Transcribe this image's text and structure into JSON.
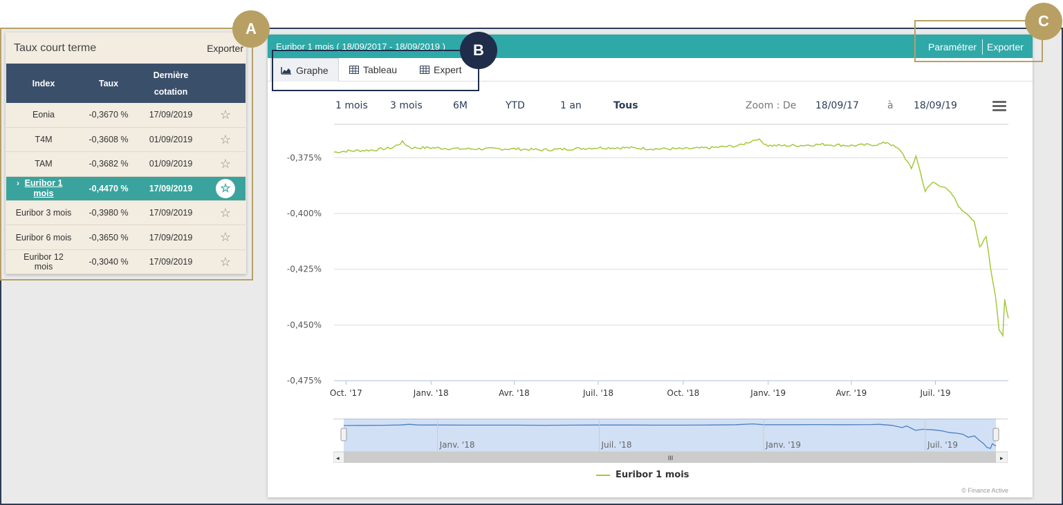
{
  "left_panel": {
    "title": "Taux court terme",
    "export_label": "Exporter",
    "columns": [
      "Index",
      "Taux",
      "Dernière cotation"
    ],
    "rows": [
      {
        "index": "Eonia",
        "taux": "-0,3670 %",
        "date": "17/09/2019",
        "active": false
      },
      {
        "index": "T4M",
        "taux": "-0,3608 %",
        "date": "01/09/2019",
        "active": false
      },
      {
        "index": "TAM",
        "taux": "-0,3682 %",
        "date": "01/09/2019",
        "active": false
      },
      {
        "index": "Euribor 1 mois",
        "taux": "-0,4470 %",
        "date": "17/09/2019",
        "active": true
      },
      {
        "index": "Euribor 3 mois",
        "taux": "-0,3980 %",
        "date": "17/09/2019",
        "active": false
      },
      {
        "index": "Euribor 6 mois",
        "taux": "-0,3650 %",
        "date": "17/09/2019",
        "active": false
      },
      {
        "index": "Euribor 12 mois",
        "taux": "-0,3040 %",
        "date": "17/09/2019",
        "active": false
      }
    ],
    "star_icon": "star-icon"
  },
  "right_panel": {
    "title": "Euribor 1 mois ( 18/09/2017 - 18/09/2019 )",
    "param_label": "Paramétrer",
    "export_label": "Exporter",
    "tabs": [
      {
        "label": "Graphe",
        "icon": "area-chart-icon",
        "active": true
      },
      {
        "label": "Tableau",
        "icon": "table-icon",
        "active": false
      },
      {
        "label": "Expert",
        "icon": "table-icon",
        "active": false
      }
    ],
    "ranges": [
      "1 mois",
      "3 mois",
      "6M",
      "YTD",
      "1 an",
      "Tous"
    ],
    "selected_range": "Tous",
    "zoom_label": "Zoom : De",
    "zoom_from": "18/09/17",
    "zoom_to_label": "à",
    "zoom_to": "18/09/19",
    "menu_icon": "hamburger-menu-icon",
    "navigator_labels": [
      "Janv. '18",
      "Juil. '18",
      "Janv. '19",
      "Juil. '19"
    ],
    "scrollbar_grip": "III",
    "legend_label": "Euribor 1 mois",
    "credits": "© Finance Active"
  },
  "callouts": {
    "a": "A",
    "b": "B",
    "c": "C"
  },
  "colors": {
    "teal": "#2fa8a8",
    "navy": "#3a4f6a",
    "gold": "#b8a064",
    "series": "#a3c83a"
  },
  "chart_data": {
    "type": "line",
    "title": "",
    "xlabel": "",
    "ylabel": "",
    "ylim": [
      -0.475,
      -0.36
    ],
    "yticks": [
      -0.375,
      -0.4,
      -0.425,
      -0.45,
      -0.475
    ],
    "ytick_labels": [
      "-0,375%",
      "-0,400%",
      "-0,425%",
      "-0,450%",
      "-0,475%"
    ],
    "xtick_labels": [
      "Oct. '17",
      "Janv. '18",
      "Avr. '18",
      "Juil. '18",
      "Oct. '18",
      "Janv. '19",
      "Avr. '19",
      "Juil. '19"
    ],
    "xticks": [
      "2017-10-01",
      "2018-01-01",
      "2018-04-01",
      "2018-07-01",
      "2018-10-01",
      "2019-01-01",
      "2019-04-01",
      "2019-07-01"
    ],
    "x_range": [
      "2017-09-18",
      "2019-09-18"
    ],
    "series": [
      {
        "name": "Euribor 1 mois",
        "color": "#a3c83a",
        "points": [
          [
            "2017-09-18",
            -0.3725
          ],
          [
            "2017-10-01",
            -0.372
          ],
          [
            "2017-11-01",
            -0.3715
          ],
          [
            "2017-11-20",
            -0.3705
          ],
          [
            "2017-12-01",
            -0.368
          ],
          [
            "2017-12-10",
            -0.3705
          ],
          [
            "2018-01-01",
            -0.3705
          ],
          [
            "2018-02-01",
            -0.371
          ],
          [
            "2018-03-01",
            -0.371
          ],
          [
            "2018-04-01",
            -0.371
          ],
          [
            "2018-05-01",
            -0.3715
          ],
          [
            "2018-06-01",
            -0.371
          ],
          [
            "2018-07-01",
            -0.3705
          ],
          [
            "2018-08-01",
            -0.3705
          ],
          [
            "2018-09-01",
            -0.371
          ],
          [
            "2018-10-01",
            -0.371
          ],
          [
            "2018-11-01",
            -0.3705
          ],
          [
            "2018-12-01",
            -0.3695
          ],
          [
            "2018-12-20",
            -0.3665
          ],
          [
            "2019-01-01",
            -0.3695
          ],
          [
            "2019-02-01",
            -0.3695
          ],
          [
            "2019-03-01",
            -0.369
          ],
          [
            "2019-04-01",
            -0.3695
          ],
          [
            "2019-05-01",
            -0.369
          ],
          [
            "2019-05-10",
            -0.368
          ],
          [
            "2019-05-25",
            -0.372
          ],
          [
            "2019-06-05",
            -0.38
          ],
          [
            "2019-06-10",
            -0.374
          ],
          [
            "2019-06-20",
            -0.39
          ],
          [
            "2019-06-28",
            -0.386
          ],
          [
            "2019-07-10",
            -0.388
          ],
          [
            "2019-07-20",
            -0.392
          ],
          [
            "2019-07-28",
            -0.398
          ],
          [
            "2019-08-05",
            -0.4
          ],
          [
            "2019-08-12",
            -0.404
          ],
          [
            "2019-08-18",
            -0.415
          ],
          [
            "2019-08-25",
            -0.41
          ],
          [
            "2019-08-30",
            -0.425
          ],
          [
            "2019-09-04",
            -0.437
          ],
          [
            "2019-09-08",
            -0.452
          ],
          [
            "2019-09-12",
            -0.455
          ],
          [
            "2019-09-14",
            -0.438
          ],
          [
            "2019-09-18",
            -0.447
          ]
        ]
      }
    ],
    "grid": true,
    "legend": "bottom-center"
  }
}
